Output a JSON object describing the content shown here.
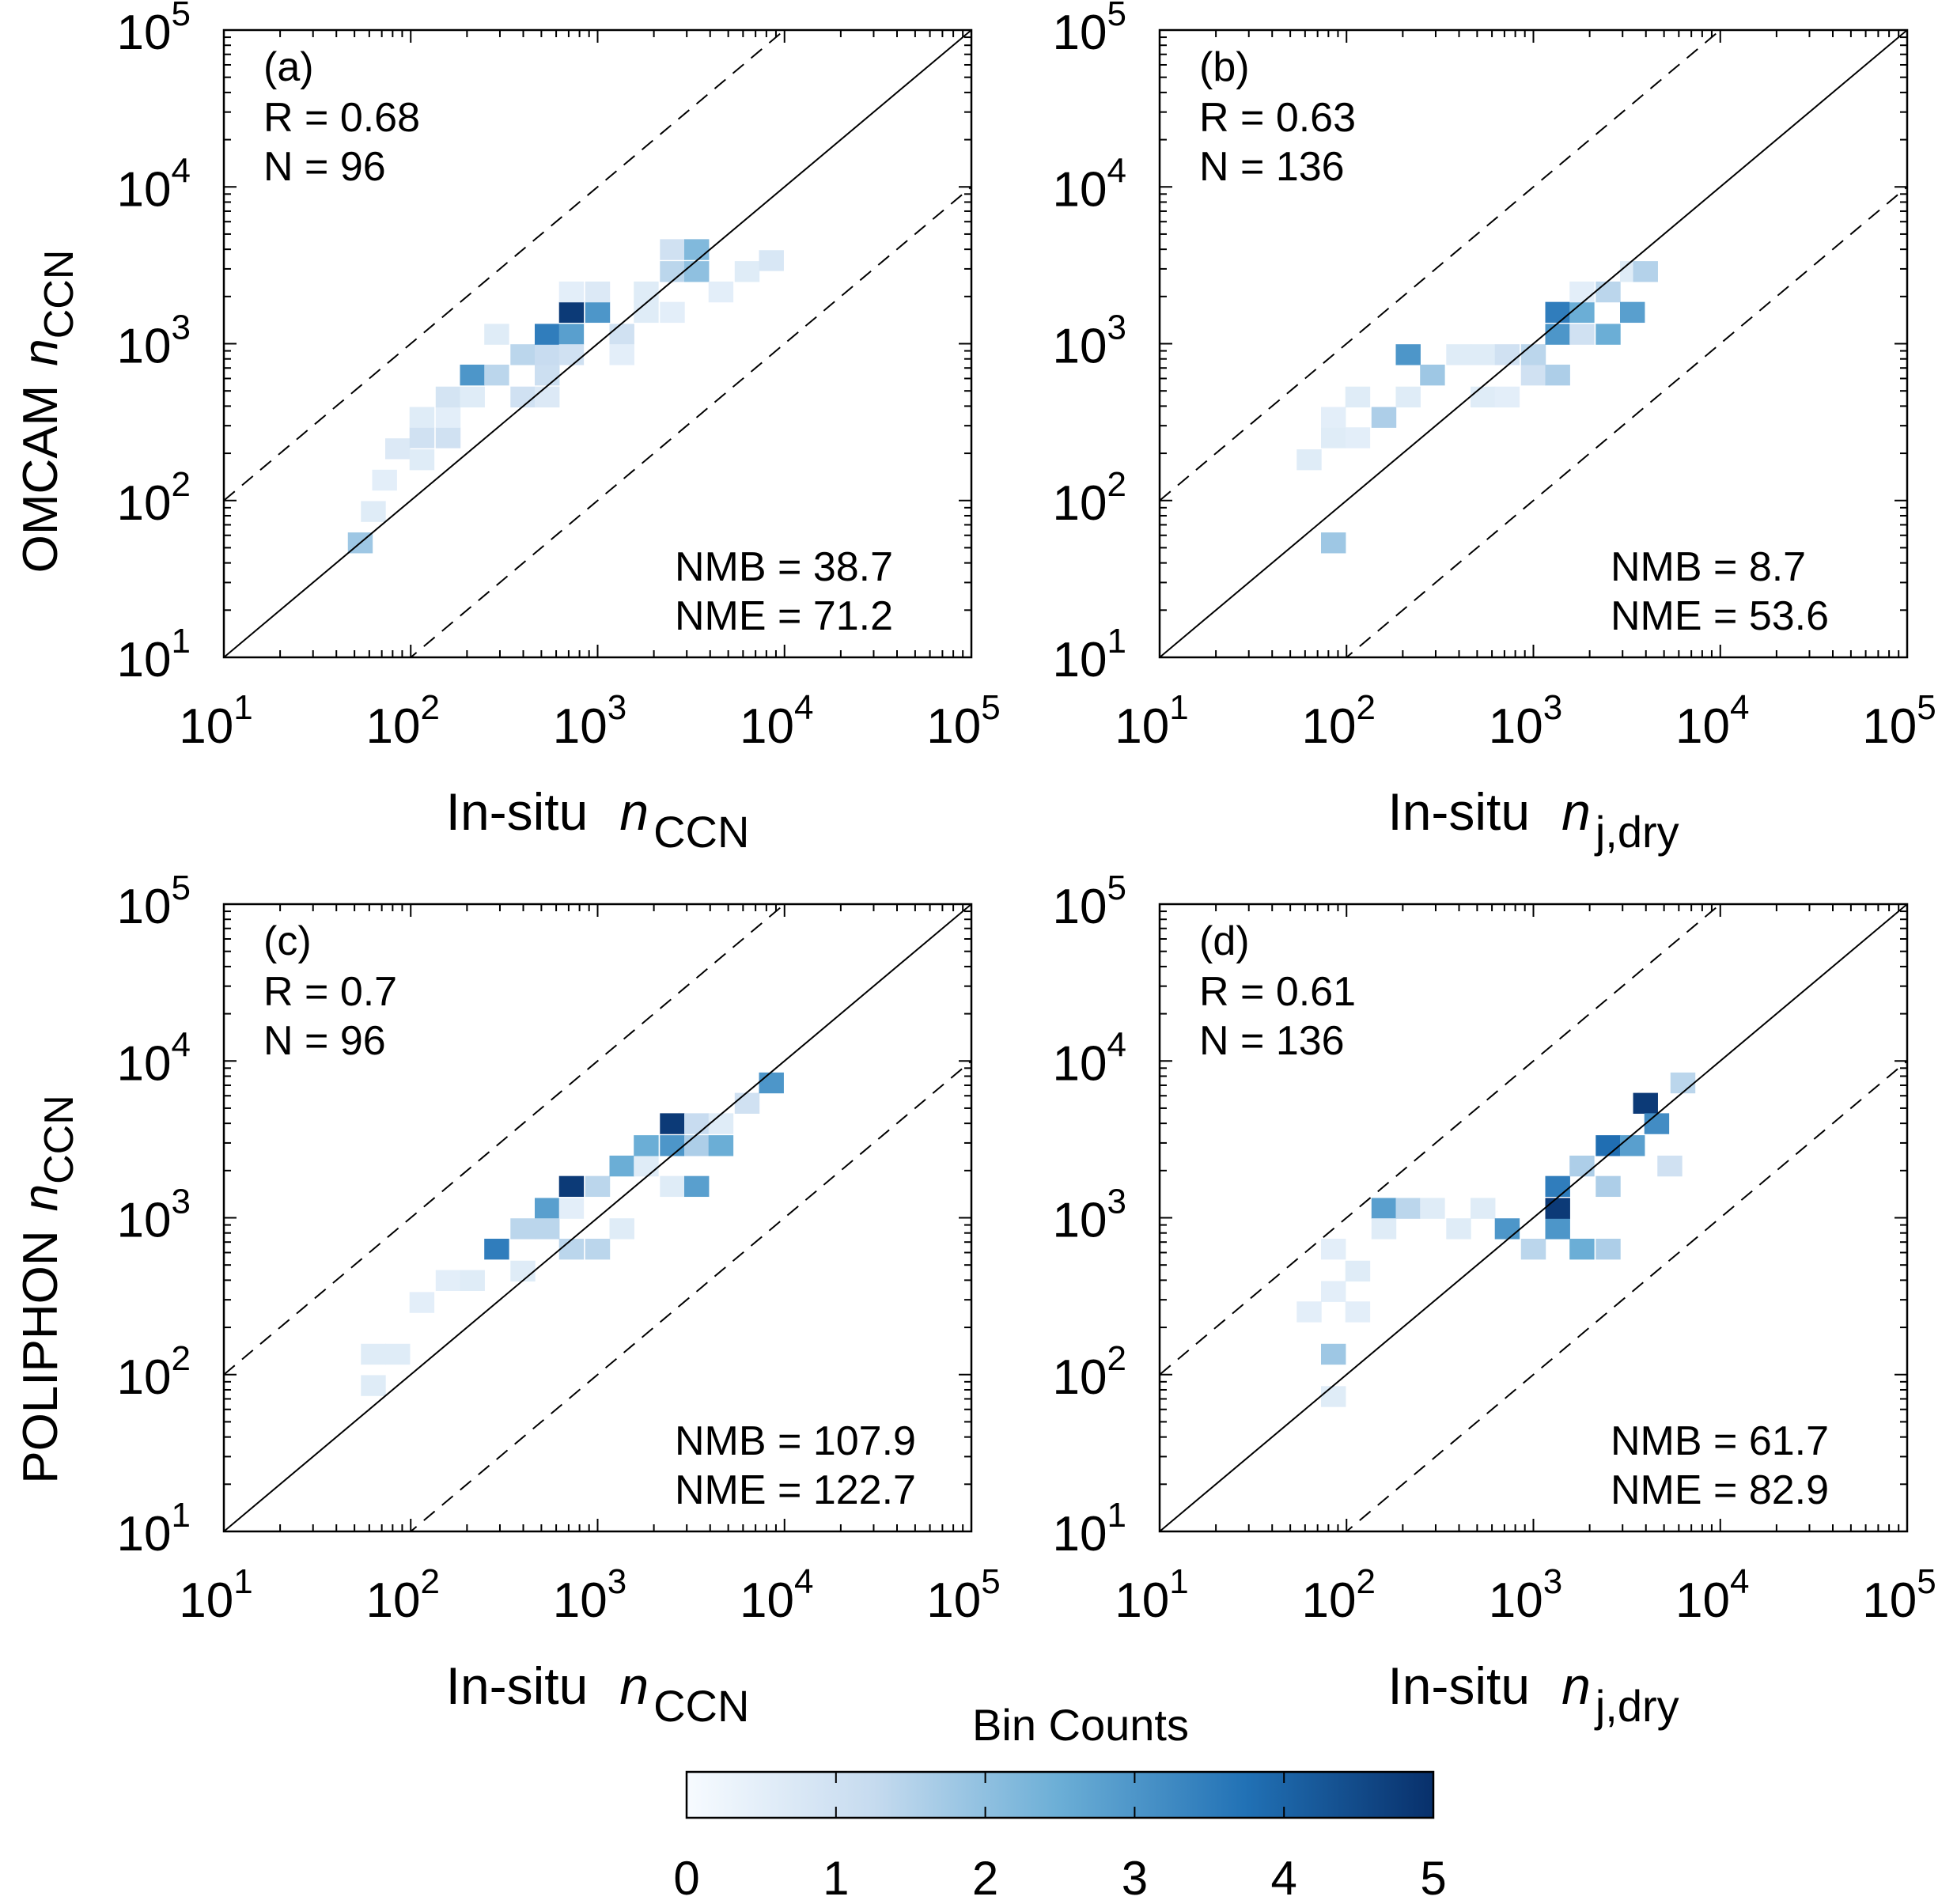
{
  "figure": {
    "row_labels": [
      {
        "main": "OMCAM",
        "var": "n",
        "sub": "CCN"
      },
      {
        "main": "POLIPHON",
        "var": "n",
        "sub": "CCN"
      }
    ],
    "colorbar": {
      "title": "Bin Counts",
      "min": 0,
      "max": 5,
      "ticks": [
        "0",
        "1",
        "2",
        "3",
        "4",
        "5"
      ],
      "colors": [
        "#f7fbff",
        "#c6dbef",
        "#6baed6",
        "#2171b5",
        "#08306b"
      ]
    }
  },
  "chart_data": [
    {
      "type": "heatmap",
      "panel": "(a)",
      "R_label": "R = 0.68",
      "N_label": "N = 96",
      "NMB_label": "NMB = 38.7",
      "NME_label": "NME = 71.2",
      "xlabel": {
        "prefix": "In-situ",
        "var": "n",
        "sub": "CCN"
      },
      "xlim_log10": [
        1,
        5
      ],
      "ylim_log10": [
        1,
        5
      ],
      "x_ticks": [
        {
          "base": "10",
          "exp": "1"
        },
        {
          "base": "10",
          "exp": "2"
        },
        {
          "base": "10",
          "exp": "3"
        },
        {
          "base": "10",
          "exp": "4"
        },
        {
          "base": "10",
          "exp": "5"
        }
      ],
      "y_ticks": [
        {
          "base": "10",
          "exp": "1"
        },
        {
          "base": "10",
          "exp": "2"
        },
        {
          "base": "10",
          "exp": "3"
        },
        {
          "base": "10",
          "exp": "4"
        },
        {
          "base": "10",
          "exp": "5"
        }
      ],
      "reference_lines": [
        {
          "style": "solid",
          "offset_log10": 0
        },
        {
          "style": "dashed",
          "offset_log10": 1
        },
        {
          "style": "dashed",
          "offset_log10": -1
        }
      ],
      "bin_width_log10": 0.133,
      "bins": [
        {
          "x": 1.73,
          "y": 1.73,
          "c": 1.8
        },
        {
          "x": 1.8,
          "y": 1.93,
          "c": 0.6
        },
        {
          "x": 1.86,
          "y": 2.13,
          "c": 0.5
        },
        {
          "x": 1.93,
          "y": 2.33,
          "c": 0.7
        },
        {
          "x": 2.06,
          "y": 2.26,
          "c": 0.6
        },
        {
          "x": 2.06,
          "y": 2.4,
          "c": 1
        },
        {
          "x": 2.06,
          "y": 2.53,
          "c": 0.6
        },
        {
          "x": 2.2,
          "y": 2.4,
          "c": 1
        },
        {
          "x": 2.2,
          "y": 2.53,
          "c": 0.5
        },
        {
          "x": 2.2,
          "y": 2.66,
          "c": 0.9
        },
        {
          "x": 2.33,
          "y": 2.66,
          "c": 0.6
        },
        {
          "x": 2.33,
          "y": 2.8,
          "c": 3
        },
        {
          "x": 2.46,
          "y": 2.8,
          "c": 1.4
        },
        {
          "x": 2.46,
          "y": 3.06,
          "c": 0.6
        },
        {
          "x": 2.6,
          "y": 2.66,
          "c": 1
        },
        {
          "x": 2.6,
          "y": 2.93,
          "c": 1.4
        },
        {
          "x": 2.73,
          "y": 2.66,
          "c": 0.7
        },
        {
          "x": 2.73,
          "y": 2.8,
          "c": 1.1
        },
        {
          "x": 2.73,
          "y": 2.93,
          "c": 1.2
        },
        {
          "x": 2.73,
          "y": 3.06,
          "c": 3.5
        },
        {
          "x": 2.86,
          "y": 3.06,
          "c": 2.8
        },
        {
          "x": 2.86,
          "y": 3.2,
          "c": 4.8
        },
        {
          "x": 2.86,
          "y": 2.93,
          "c": 1
        },
        {
          "x": 2.86,
          "y": 3.33,
          "c": 0.5
        },
        {
          "x": 3,
          "y": 3.2,
          "c": 3
        },
        {
          "x": 3,
          "y": 3.33,
          "c": 0.7
        },
        {
          "x": 3.13,
          "y": 3.06,
          "c": 1
        },
        {
          "x": 3.13,
          "y": 2.93,
          "c": 0.5
        },
        {
          "x": 3.26,
          "y": 3.2,
          "c": 0.6
        },
        {
          "x": 3.26,
          "y": 3.33,
          "c": 0.6
        },
        {
          "x": 3.4,
          "y": 3.2,
          "c": 0.5
        },
        {
          "x": 3.4,
          "y": 3.46,
          "c": 1.4
        },
        {
          "x": 3.4,
          "y": 3.6,
          "c": 1
        },
        {
          "x": 3.53,
          "y": 3.46,
          "c": 2
        },
        {
          "x": 3.53,
          "y": 3.6,
          "c": 2.2
        },
        {
          "x": 3.66,
          "y": 3.33,
          "c": 0.5
        },
        {
          "x": 3.8,
          "y": 3.46,
          "c": 0.6
        },
        {
          "x": 3.93,
          "y": 3.53,
          "c": 0.8
        }
      ]
    },
    {
      "type": "heatmap",
      "panel": "(b)",
      "R_label": "R = 0.63",
      "N_label": "N = 136",
      "NMB_label": "NMB = 8.7",
      "NME_label": "NME = 53.6",
      "xlabel": {
        "prefix": "In-situ",
        "var": "n",
        "sub": "j,dry"
      },
      "xlim_log10": [
        1,
        5
      ],
      "ylim_log10": [
        1,
        5
      ],
      "x_ticks": [
        {
          "base": "10",
          "exp": "1"
        },
        {
          "base": "10",
          "exp": "2"
        },
        {
          "base": "10",
          "exp": "3"
        },
        {
          "base": "10",
          "exp": "4"
        },
        {
          "base": "10",
          "exp": "5"
        }
      ],
      "y_ticks": [
        {
          "base": "10",
          "exp": "1"
        },
        {
          "base": "10",
          "exp": "2"
        },
        {
          "base": "10",
          "exp": "3"
        },
        {
          "base": "10",
          "exp": "4"
        },
        {
          "base": "10",
          "exp": "5"
        }
      ],
      "reference_lines": [
        {
          "style": "solid",
          "offset_log10": 0
        },
        {
          "style": "dashed",
          "offset_log10": 1
        },
        {
          "style": "dashed",
          "offset_log10": -1
        }
      ],
      "bin_width_log10": 0.133,
      "bins": [
        {
          "x": 1.93,
          "y": 1.73,
          "c": 1.8
        },
        {
          "x": 1.8,
          "y": 2.26,
          "c": 0.6
        },
        {
          "x": 1.93,
          "y": 2.4,
          "c": 0.6
        },
        {
          "x": 1.93,
          "y": 2.53,
          "c": 0.5
        },
        {
          "x": 2.06,
          "y": 2.4,
          "c": 0.5
        },
        {
          "x": 2.06,
          "y": 2.66,
          "c": 0.6
        },
        {
          "x": 2.2,
          "y": 2.53,
          "c": 1.6
        },
        {
          "x": 2.33,
          "y": 2.66,
          "c": 0.6
        },
        {
          "x": 2.33,
          "y": 2.93,
          "c": 3
        },
        {
          "x": 2.46,
          "y": 2.8,
          "c": 1.8
        },
        {
          "x": 2.6,
          "y": 2.93,
          "c": 0.6
        },
        {
          "x": 2.73,
          "y": 2.66,
          "c": 0.6
        },
        {
          "x": 2.73,
          "y": 2.93,
          "c": 0.6
        },
        {
          "x": 2.86,
          "y": 2.66,
          "c": 0.5
        },
        {
          "x": 2.86,
          "y": 2.93,
          "c": 1
        },
        {
          "x": 3,
          "y": 2.8,
          "c": 1
        },
        {
          "x": 3,
          "y": 2.93,
          "c": 1.4
        },
        {
          "x": 3.13,
          "y": 2.8,
          "c": 1.6
        },
        {
          "x": 3.13,
          "y": 3.06,
          "c": 3
        },
        {
          "x": 3.13,
          "y": 3.2,
          "c": 3.5
        },
        {
          "x": 3.26,
          "y": 3.06,
          "c": 1
        },
        {
          "x": 3.26,
          "y": 3.2,
          "c": 2.5
        },
        {
          "x": 3.26,
          "y": 3.33,
          "c": 0.5
        },
        {
          "x": 3.4,
          "y": 3.33,
          "c": 1.4
        },
        {
          "x": 3.53,
          "y": 3.46,
          "c": 0.6
        },
        {
          "x": 3.4,
          "y": 3.06,
          "c": 2.5
        },
        {
          "x": 3.53,
          "y": 3.2,
          "c": 2.8
        },
        {
          "x": 3.6,
          "y": 3.46,
          "c": 1.5
        }
      ]
    },
    {
      "type": "heatmap",
      "panel": "(c)",
      "R_label": "R = 0.7",
      "N_label": "N = 96",
      "NMB_label": "NMB = 107.9",
      "NME_label": "NME = 122.7",
      "xlabel": {
        "prefix": "In-situ",
        "var": "n",
        "sub": "CCN"
      },
      "xlim_log10": [
        1,
        5
      ],
      "ylim_log10": [
        1,
        5
      ],
      "x_ticks": [
        {
          "base": "10",
          "exp": "1"
        },
        {
          "base": "10",
          "exp": "2"
        },
        {
          "base": "10",
          "exp": "3"
        },
        {
          "base": "10",
          "exp": "4"
        },
        {
          "base": "10",
          "exp": "5"
        }
      ],
      "y_ticks": [
        {
          "base": "10",
          "exp": "1"
        },
        {
          "base": "10",
          "exp": "2"
        },
        {
          "base": "10",
          "exp": "3"
        },
        {
          "base": "10",
          "exp": "4"
        },
        {
          "base": "10",
          "exp": "5"
        }
      ],
      "reference_lines": [
        {
          "style": "solid",
          "offset_log10": 0
        },
        {
          "style": "dashed",
          "offset_log10": 1
        },
        {
          "style": "dashed",
          "offset_log10": -1
        }
      ],
      "bin_width_log10": 0.133,
      "bins": [
        {
          "x": 1.8,
          "y": 1.93,
          "c": 0.6
        },
        {
          "x": 1.8,
          "y": 2.13,
          "c": 0.6
        },
        {
          "x": 1.93,
          "y": 2.13,
          "c": 0.6
        },
        {
          "x": 2.06,
          "y": 2.46,
          "c": 0.5
        },
        {
          "x": 2.2,
          "y": 2.6,
          "c": 0.5
        },
        {
          "x": 2.33,
          "y": 2.6,
          "c": 0.6
        },
        {
          "x": 2.46,
          "y": 2.8,
          "c": 3.5
        },
        {
          "x": 2.6,
          "y": 2.66,
          "c": 0.6
        },
        {
          "x": 2.6,
          "y": 2.93,
          "c": 1.4
        },
        {
          "x": 2.73,
          "y": 3.06,
          "c": 2.8
        },
        {
          "x": 2.73,
          "y": 2.93,
          "c": 1.4
        },
        {
          "x": 2.86,
          "y": 3.06,
          "c": 0.5
        },
        {
          "x": 2.86,
          "y": 3.2,
          "c": 4.8
        },
        {
          "x": 2.86,
          "y": 2.8,
          "c": 1.4
        },
        {
          "x": 3,
          "y": 2.8,
          "c": 1.4
        },
        {
          "x": 3,
          "y": 3.2,
          "c": 1.4
        },
        {
          "x": 3.13,
          "y": 2.93,
          "c": 0.6
        },
        {
          "x": 3.13,
          "y": 3.33,
          "c": 2.5
        },
        {
          "x": 3.26,
          "y": 3.33,
          "c": 0.6
        },
        {
          "x": 3.26,
          "y": 3.46,
          "c": 2.5
        },
        {
          "x": 3.4,
          "y": 3.2,
          "c": 0.6
        },
        {
          "x": 3.4,
          "y": 3.46,
          "c": 3
        },
        {
          "x": 3.4,
          "y": 3.6,
          "c": 4.8
        },
        {
          "x": 3.53,
          "y": 3.2,
          "c": 2.8
        },
        {
          "x": 3.53,
          "y": 3.46,
          "c": 1.6
        },
        {
          "x": 3.53,
          "y": 3.6,
          "c": 1.2
        },
        {
          "x": 3.66,
          "y": 3.46,
          "c": 2.5
        },
        {
          "x": 3.66,
          "y": 3.6,
          "c": 0.6
        },
        {
          "x": 3.8,
          "y": 3.73,
          "c": 1
        },
        {
          "x": 3.93,
          "y": 3.86,
          "c": 3
        }
      ]
    },
    {
      "type": "heatmap",
      "panel": "(d)",
      "R_label": "R = 0.61",
      "N_label": "N = 136",
      "NMB_label": "NMB = 61.7",
      "NME_label": "NME = 82.9",
      "xlabel": {
        "prefix": "In-situ",
        "var": "n",
        "sub": "j,dry"
      },
      "xlim_log10": [
        1,
        5
      ],
      "ylim_log10": [
        1,
        5
      ],
      "x_ticks": [
        {
          "base": "10",
          "exp": "1"
        },
        {
          "base": "10",
          "exp": "2"
        },
        {
          "base": "10",
          "exp": "3"
        },
        {
          "base": "10",
          "exp": "4"
        },
        {
          "base": "10",
          "exp": "5"
        }
      ],
      "y_ticks": [
        {
          "base": "10",
          "exp": "1"
        },
        {
          "base": "10",
          "exp": "2"
        },
        {
          "base": "10",
          "exp": "3"
        },
        {
          "base": "10",
          "exp": "4"
        },
        {
          "base": "10",
          "exp": "5"
        }
      ],
      "reference_lines": [
        {
          "style": "solid",
          "offset_log10": 0
        },
        {
          "style": "dashed",
          "offset_log10": 1
        },
        {
          "style": "dashed",
          "offset_log10": -1
        }
      ],
      "bin_width_log10": 0.133,
      "bins": [
        {
          "x": 1.93,
          "y": 1.86,
          "c": 0.6
        },
        {
          "x": 1.93,
          "y": 2.13,
          "c": 1.8
        },
        {
          "x": 1.8,
          "y": 2.4,
          "c": 0.5
        },
        {
          "x": 1.93,
          "y": 2.53,
          "c": 0.5
        },
        {
          "x": 2.06,
          "y": 2.4,
          "c": 0.5
        },
        {
          "x": 2.06,
          "y": 2.66,
          "c": 0.6
        },
        {
          "x": 1.93,
          "y": 2.8,
          "c": 0.5
        },
        {
          "x": 2.2,
          "y": 3.06,
          "c": 2.8
        },
        {
          "x": 2.2,
          "y": 2.93,
          "c": 0.6
        },
        {
          "x": 2.33,
          "y": 3.06,
          "c": 1.4
        },
        {
          "x": 2.46,
          "y": 3.06,
          "c": 0.6
        },
        {
          "x": 2.6,
          "y": 2.93,
          "c": 0.6
        },
        {
          "x": 2.73,
          "y": 3.06,
          "c": 0.6
        },
        {
          "x": 2.86,
          "y": 2.93,
          "c": 3
        },
        {
          "x": 3,
          "y": 2.8,
          "c": 1.4
        },
        {
          "x": 3.13,
          "y": 2.93,
          "c": 3
        },
        {
          "x": 3.13,
          "y": 3.06,
          "c": 4.8
        },
        {
          "x": 3.13,
          "y": 3.2,
          "c": 3.5
        },
        {
          "x": 3.26,
          "y": 3.33,
          "c": 1.6
        },
        {
          "x": 3.26,
          "y": 2.8,
          "c": 2.5
        },
        {
          "x": 3.4,
          "y": 2.8,
          "c": 1.6
        },
        {
          "x": 3.4,
          "y": 3.2,
          "c": 1.6
        },
        {
          "x": 3.4,
          "y": 3.46,
          "c": 3.8
        },
        {
          "x": 3.53,
          "y": 3.46,
          "c": 2.8
        },
        {
          "x": 3.6,
          "y": 3.73,
          "c": 4.8
        },
        {
          "x": 3.66,
          "y": 3.6,
          "c": 3.2
        },
        {
          "x": 3.73,
          "y": 3.33,
          "c": 1
        },
        {
          "x": 3.8,
          "y": 3.86,
          "c": 1.4
        }
      ]
    }
  ]
}
